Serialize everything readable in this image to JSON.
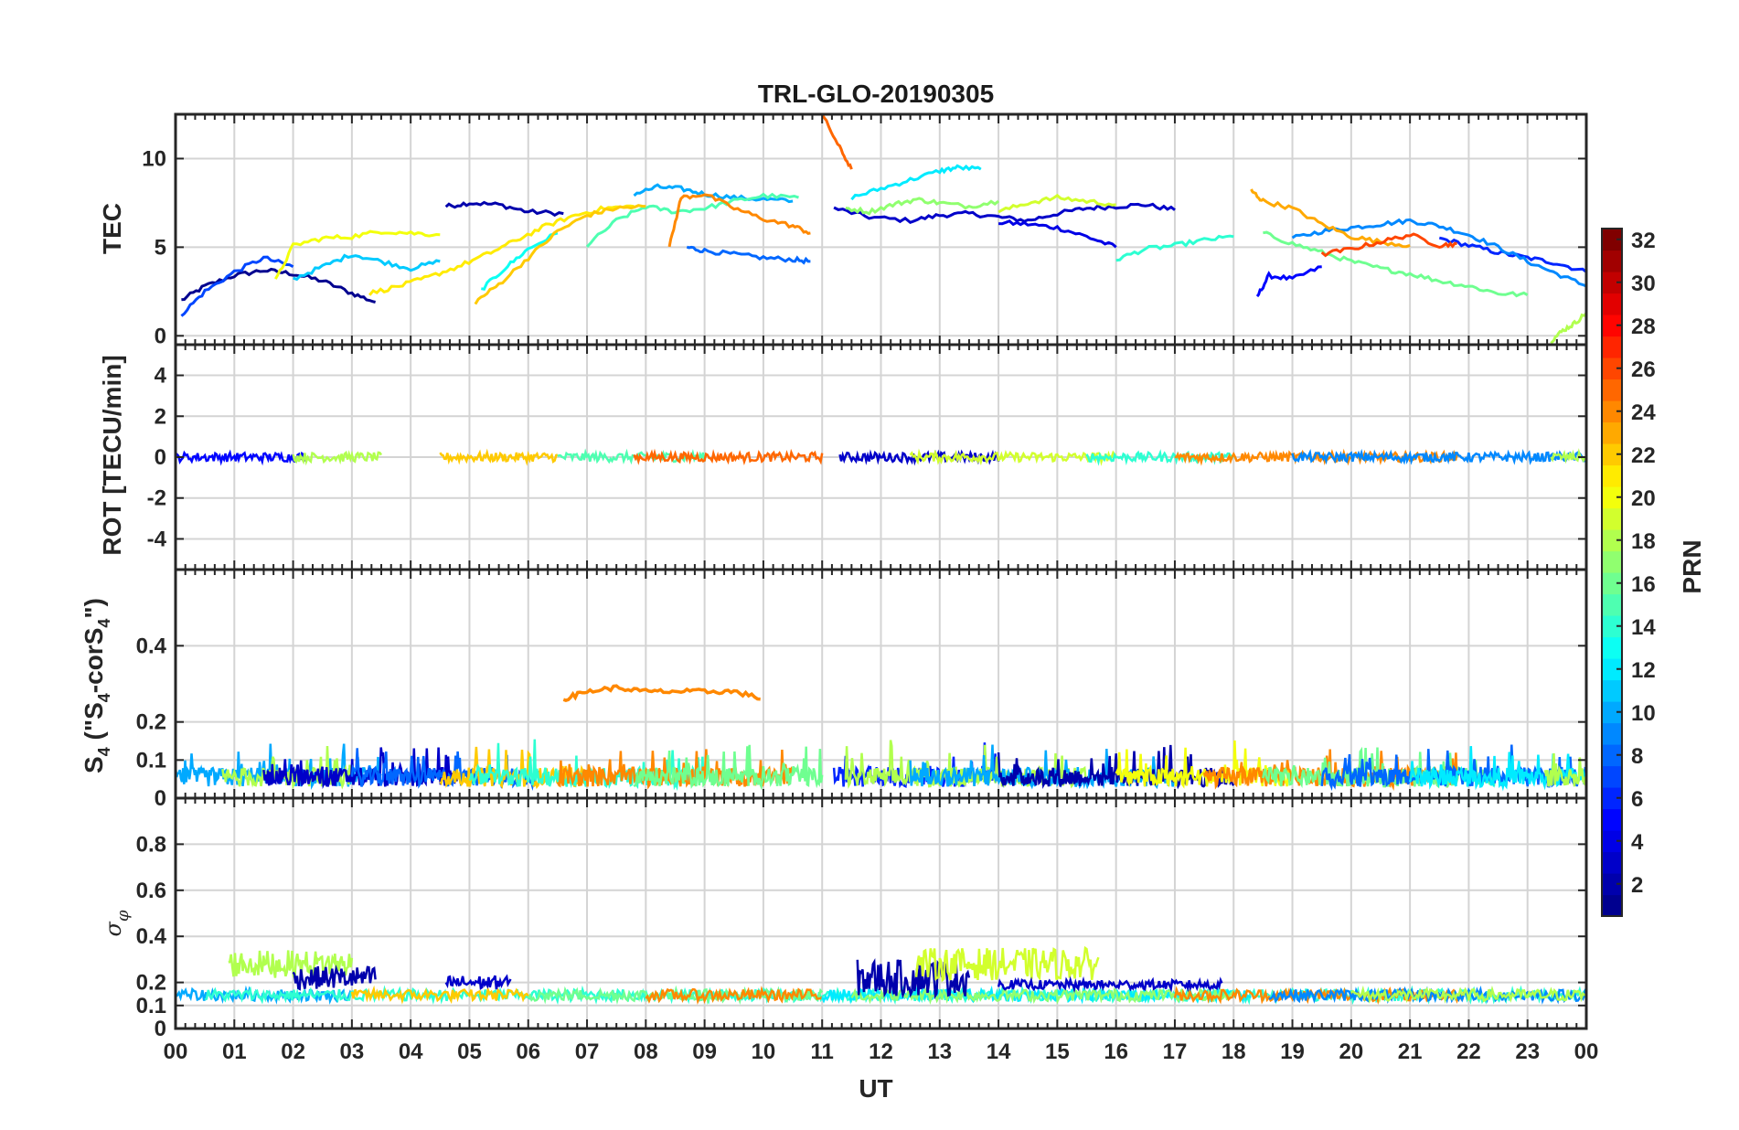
{
  "title": "TRL-GLO-20190305",
  "xlabel": "UT",
  "colorbar_label": "PRN",
  "colormap": [
    "#00008f",
    "#0000ff",
    "#0080ff",
    "#00ffff",
    "#80ff80",
    "#ffff00",
    "#ff8000",
    "#ff0000",
    "#800000"
  ],
  "chart_data": [
    {
      "type": "line",
      "panel": "TEC",
      "title": "TRL-GLO-20190305",
      "ylabel": "TEC",
      "xlim": [
        0,
        24
      ],
      "ylim": [
        -0.5,
        12.5
      ],
      "yticks": [
        0,
        5,
        10
      ],
      "grid": true,
      "xtick_labels": [
        "00",
        "01",
        "02",
        "03",
        "04",
        "05",
        "06",
        "07",
        "08",
        "09",
        "10",
        "11",
        "12",
        "13",
        "14",
        "15",
        "16",
        "17",
        "18",
        "19",
        "20",
        "21",
        "22",
        "23",
        "00"
      ],
      "series": [
        {
          "prn": 1,
          "x": [
            0.1,
            0.5,
            1.0,
            1.5,
            2.0,
            2.5,
            3.0,
            3.4
          ],
          "y": [
            2.0,
            2.8,
            3.4,
            3.7,
            3.5,
            3.1,
            2.4,
            1.9
          ]
        },
        {
          "prn": 2,
          "x": [
            4.6,
            5.0,
            5.5,
            6.0,
            6.6
          ],
          "y": [
            7.3,
            7.5,
            7.4,
            7.0,
            6.9
          ]
        },
        {
          "prn": 3,
          "x": [
            11.2,
            11.8,
            12.5,
            13.0,
            13.5,
            14.0,
            14.5,
            15.0,
            15.5,
            16.0,
            16.5,
            17.0
          ],
          "y": [
            7.2,
            6.7,
            6.5,
            6.8,
            6.9,
            6.7,
            6.5,
            6.9,
            7.2,
            7.3,
            7.4,
            7.1
          ]
        },
        {
          "prn": 4,
          "x": [
            14.0,
            14.5,
            15.0,
            15.5,
            16.0
          ],
          "y": [
            6.4,
            6.3,
            6.1,
            5.6,
            5.0
          ]
        },
        {
          "prn": 5,
          "x": [
            18.4,
            18.6,
            19.0,
            19.5
          ],
          "y": [
            2.2,
            3.4,
            3.2,
            3.9
          ]
        },
        {
          "prn": 6,
          "x": [
            21.5,
            22.0,
            22.5,
            23.0,
            23.5,
            24.0
          ],
          "y": [
            5.5,
            5.1,
            4.7,
            4.4,
            4.1,
            3.6
          ]
        },
        {
          "prn": 7,
          "x": [
            0.1,
            0.5,
            1.0,
            1.5,
            2.0
          ],
          "y": [
            1.2,
            2.5,
            3.6,
            4.4,
            3.9
          ]
        },
        {
          "prn": 8,
          "x": [
            8.7,
            9.0,
            9.5,
            10.0,
            10.5,
            10.8
          ],
          "y": [
            5.0,
            4.8,
            4.6,
            4.4,
            4.3,
            4.2
          ]
        },
        {
          "prn": 9,
          "x": [
            19.0,
            19.5,
            20.0,
            20.5,
            21.0,
            21.5,
            22.0,
            22.5,
            23.0,
            23.5,
            24.0
          ],
          "y": [
            5.5,
            5.9,
            6.1,
            6.3,
            6.5,
            6.2,
            5.7,
            5.0,
            4.2,
            3.5,
            2.8
          ]
        },
        {
          "prn": 10,
          "x": [
            7.8,
            8.2,
            8.6,
            9.0,
            9.5,
            10.0,
            10.5
          ],
          "y": [
            8.0,
            8.4,
            8.3,
            8.0,
            7.8,
            7.7,
            7.6
          ]
        },
        {
          "prn": 11,
          "x": [
            2.0,
            2.5,
            3.0,
            3.5,
            4.0,
            4.5
          ],
          "y": [
            3.2,
            3.9,
            4.6,
            4.2,
            3.8,
            4.2
          ]
        },
        {
          "prn": 12,
          "x": [
            11.5,
            12.0,
            12.5,
            13.0,
            13.3,
            13.7
          ],
          "y": [
            7.8,
            8.3,
            8.8,
            9.3,
            9.5,
            9.4
          ]
        },
        {
          "prn": 13,
          "x": [
            5.2,
            5.6,
            6.0,
            6.5
          ],
          "y": [
            2.6,
            3.8,
            4.9,
            5.8
          ]
        },
        {
          "prn": 14,
          "x": [
            16.0,
            16.5,
            17.0,
            17.5,
            18.0
          ],
          "y": [
            4.3,
            4.9,
            5.1,
            5.4,
            5.6
          ]
        },
        {
          "prn": 15,
          "x": [
            7.0,
            7.5,
            8.0,
            8.5,
            9.0,
            9.5,
            10.0,
            10.6
          ],
          "y": [
            5.1,
            6.5,
            7.3,
            7.0,
            7.2,
            7.6,
            7.9,
            7.8
          ]
        },
        {
          "prn": 16,
          "x": [
            18.5,
            19.0,
            19.5,
            20.0,
            20.5,
            21.0,
            21.5,
            22.0,
            22.5,
            23.0
          ],
          "y": [
            5.8,
            5.2,
            4.7,
            4.2,
            3.8,
            3.5,
            3.1,
            2.8,
            2.4,
            2.3
          ]
        },
        {
          "prn": 17,
          "x": [
            11.4,
            11.8,
            12.2,
            12.6,
            13.0,
            13.5,
            14.0
          ],
          "y": [
            7.2,
            7.0,
            7.4,
            7.7,
            7.5,
            7.3,
            7.6
          ]
        },
        {
          "prn": 18,
          "x": [
            23.4,
            23.6,
            23.8,
            24.0
          ],
          "y": [
            -0.3,
            0.3,
            0.7,
            1.3
          ]
        },
        {
          "prn": 19,
          "x": [
            14.0,
            14.5,
            15.0,
            15.5,
            16.0
          ],
          "y": [
            7.0,
            7.5,
            7.8,
            7.6,
            7.4
          ]
        },
        {
          "prn": 20,
          "x": [
            1.7,
            2.0,
            2.5,
            3.0,
            3.5,
            4.0,
            4.5
          ],
          "y": [
            3.1,
            5.1,
            5.5,
            5.6,
            5.9,
            5.8,
            5.7
          ]
        },
        {
          "prn": 21,
          "x": [
            3.3,
            3.8,
            4.3,
            4.8,
            5.3,
            5.8,
            6.3,
            6.8,
            7.3,
            7.8
          ],
          "y": [
            2.4,
            2.8,
            3.3,
            3.9,
            4.6,
            5.4,
            6.2,
            6.8,
            7.2,
            7.3
          ]
        },
        {
          "prn": 22,
          "x": [
            5.1,
            5.5,
            6.0,
            6.5,
            7.0,
            7.5,
            8.0
          ],
          "y": [
            1.9,
            2.9,
            4.4,
            5.9,
            6.8,
            7.2,
            7.3
          ]
        },
        {
          "prn": 23,
          "x": [
            18.3,
            18.5,
            19.0,
            19.5,
            20.0,
            20.5,
            21.0
          ],
          "y": [
            8.2,
            7.6,
            7.2,
            6.3,
            5.6,
            5.3,
            5.1
          ]
        },
        {
          "prn": 24,
          "x": [
            8.4,
            8.6,
            9.0,
            9.5,
            10.0,
            10.5,
            10.8
          ],
          "y": [
            5.0,
            7.8,
            8.0,
            7.2,
            6.6,
            6.2,
            5.8
          ]
        },
        {
          "prn": 25,
          "x": [
            11.0,
            11.3,
            11.5
          ],
          "y": [
            12.5,
            10.6,
            9.4
          ]
        },
        {
          "prn": 26,
          "x": [
            19.5,
            20.0,
            20.5,
            21.0,
            21.5,
            21.8
          ],
          "y": [
            4.6,
            4.9,
            5.3,
            5.7,
            5.1,
            5.2
          ]
        }
      ]
    },
    {
      "type": "line",
      "panel": "ROT",
      "ylabel": "ROT [TECU/min]",
      "xlim": [
        0,
        24
      ],
      "ylim": [
        -5.5,
        5.5
      ],
      "yticks": [
        -4,
        -2,
        0,
        2,
        4
      ],
      "grid": true,
      "note_data": "all series fluctuate within about ±0.3 TECU/min around 0"
    },
    {
      "type": "line",
      "panel": "S4",
      "ylabel": "S4 (\"S4-corS4\")",
      "ylabel_main": "S",
      "ylabel_sub1": "4",
      "ylabel_mid": " (\"S",
      "ylabel_sub2": "4",
      "ylabel_mid2": "-corS",
      "ylabel_sub3": "4",
      "ylabel_end": "\")",
      "xlim": [
        0,
        24
      ],
      "ylim": [
        0,
        0.6
      ],
      "yticks": [
        0,
        0.1,
        0.2,
        0.4
      ],
      "ytick_labels": [
        "0",
        "0.1",
        "0.2",
        "0.4"
      ],
      "grid": true,
      "highlight_series": {
        "prn": 24,
        "x": [
          6.6,
          7.0,
          7.5,
          8.0,
          8.5,
          9.0,
          9.5,
          10.0
        ],
        "y": [
          0.26,
          0.28,
          0.29,
          0.28,
          0.28,
          0.28,
          0.28,
          0.26
        ]
      },
      "note_data": "noise band from 0 to about 0.15 across all hours"
    },
    {
      "type": "line",
      "panel": "sigma_phi",
      "ylabel": "σφ",
      "ylabel_main": "σ",
      "ylabel_sub": "φ",
      "xlim": [
        0,
        24
      ],
      "ylim": [
        0,
        1
      ],
      "yticks": [
        0,
        0.1,
        0.2,
        0.4,
        0.6,
        0.8
      ],
      "ytick_labels": [
        "0",
        "0.1",
        "0.2",
        "0.4",
        "0.6",
        "0.8"
      ],
      "grid": true,
      "bands": [
        {
          "prn": 18,
          "x0": 0.9,
          "x1": 3.0,
          "level": 0.28,
          "amp": 0.06
        },
        {
          "prn": 2,
          "x0": 2.0,
          "x1": 3.4,
          "level": 0.22,
          "amp": 0.05
        },
        {
          "prn": 3,
          "x0": 4.6,
          "x1": 5.7,
          "level": 0.2,
          "amp": 0.03
        },
        {
          "prn": 2,
          "x0": 11.6,
          "x1": 13.5,
          "level": 0.22,
          "amp": 0.08
        },
        {
          "prn": 19,
          "x0": 12.6,
          "x1": 15.7,
          "level": 0.28,
          "amp": 0.07
        },
        {
          "prn": 3,
          "x0": 14.0,
          "x1": 17.8,
          "level": 0.19,
          "amp": 0.02
        }
      ]
    }
  ],
  "colorbar": {
    "ylim": [
      1,
      32
    ],
    "ticks": [
      2,
      4,
      6,
      8,
      10,
      12,
      14,
      16,
      18,
      20,
      22,
      24,
      26,
      28,
      30,
      32
    ]
  }
}
